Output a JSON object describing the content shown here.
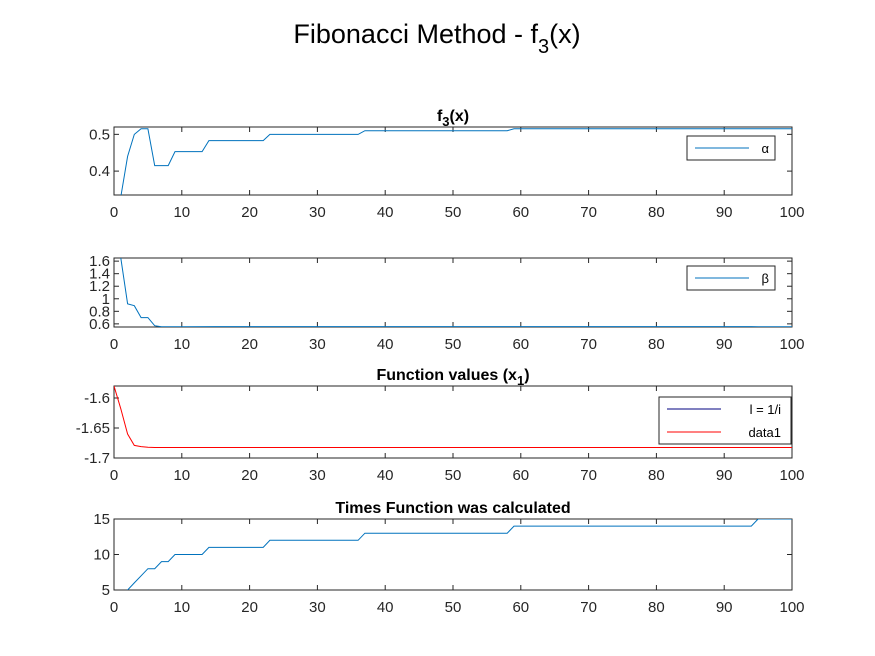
{
  "figure": {
    "title_main": "Fibonacci Method - f",
    "title_sub": "3",
    "title_tail": "(x)"
  },
  "chart_data": [
    {
      "type": "line",
      "title": "f",
      "title_sub": "3",
      "title_tail": "(x)",
      "xlim": [
        0,
        100
      ],
      "ylim": [
        0.335,
        0.52
      ],
      "xticks": [
        0,
        10,
        20,
        30,
        40,
        50,
        60,
        70,
        80,
        90,
        100
      ],
      "yticks": [
        0.4,
        0.5
      ],
      "ytick_labels": [
        "0.4",
        "0.5"
      ],
      "legend_position": "east",
      "series": [
        {
          "name": "α",
          "color": "#0072BD",
          "x": [
            1,
            2,
            3,
            4,
            5,
            6,
            7,
            8,
            9,
            10,
            11,
            12,
            13,
            14,
            15,
            22,
            23,
            36,
            37,
            58,
            59,
            94,
            95,
            100
          ],
          "y": [
            0.33,
            0.44,
            0.5,
            0.515,
            0.515,
            0.415,
            0.415,
            0.415,
            0.453,
            0.453,
            0.453,
            0.453,
            0.453,
            0.483,
            0.483,
            0.483,
            0.5,
            0.5,
            0.51,
            0.51,
            0.515,
            0.515,
            0.515,
            0.515
          ]
        }
      ]
    },
    {
      "type": "line",
      "title": "",
      "xlim": [
        0,
        100
      ],
      "ylim": [
        0.55,
        1.65
      ],
      "xticks": [
        0,
        10,
        20,
        30,
        40,
        50,
        60,
        70,
        80,
        90,
        100
      ],
      "yticks": [
        0.6,
        0.8,
        1.0,
        1.2,
        1.4,
        1.6
      ],
      "ytick_labels": [
        "0.6",
        "0.8",
        "1",
        "1.2",
        "1.4",
        "1.6"
      ],
      "legend_position": "east",
      "series": [
        {
          "name": "β",
          "color": "#0072BD",
          "x": [
            1,
            2,
            3,
            4,
            5,
            6,
            7,
            10,
            15,
            22,
            36,
            58,
            94,
            95,
            100
          ],
          "y": [
            1.65,
            0.92,
            0.89,
            0.7,
            0.7,
            0.57,
            0.553,
            0.553,
            0.556,
            0.556,
            0.556,
            0.556,
            0.556,
            0.553,
            0.553
          ]
        }
      ]
    },
    {
      "type": "line",
      "title": "Function values (x",
      "title_sub": "1",
      "title_tail": ")",
      "xlim": [
        0,
        100
      ],
      "ylim": [
        -1.7,
        -1.58
      ],
      "xticks": [
        0,
        10,
        20,
        30,
        40,
        50,
        60,
        70,
        80,
        90,
        100
      ],
      "yticks": [
        -1.7,
        -1.65,
        -1.6
      ],
      "ytick_labels": [
        "-1.7",
        "-1.65",
        "-1.6"
      ],
      "legend_position": "east",
      "series": [
        {
          "name": "l = 1/i",
          "color": "#000080",
          "x": [],
          "y": []
        },
        {
          "name": "data1",
          "color": "#FF0000",
          "x": [
            0,
            1,
            2,
            3,
            4,
            5,
            6,
            10,
            20,
            40,
            60,
            80,
            100
          ],
          "y": [
            -1.58,
            -1.618,
            -1.66,
            -1.679,
            -1.681,
            -1.682,
            -1.6825,
            -1.6825,
            -1.6825,
            -1.6825,
            -1.6825,
            -1.6825,
            -1.6825
          ]
        }
      ]
    },
    {
      "type": "line",
      "title": "Times Function was calculated",
      "xlim": [
        0,
        100
      ],
      "ylim": [
        5,
        15
      ],
      "xticks": [
        0,
        10,
        20,
        30,
        40,
        50,
        60,
        70,
        80,
        90,
        100
      ],
      "yticks": [
        5,
        10,
        15
      ],
      "ytick_labels": [
        "5",
        "10",
        "15"
      ],
      "series": [
        {
          "name": "",
          "color": "#0072BD",
          "x": [
            1,
            2,
            3,
            4,
            5,
            6,
            7,
            8,
            9,
            10,
            13,
            14,
            22,
            23,
            36,
            37,
            58,
            59,
            94,
            95,
            100
          ],
          "y": [
            4,
            5,
            6,
            7,
            8,
            8,
            9,
            9,
            10,
            10,
            10,
            11,
            11,
            12,
            12,
            13,
            13,
            14,
            14,
            15,
            15
          ]
        }
      ]
    }
  ]
}
